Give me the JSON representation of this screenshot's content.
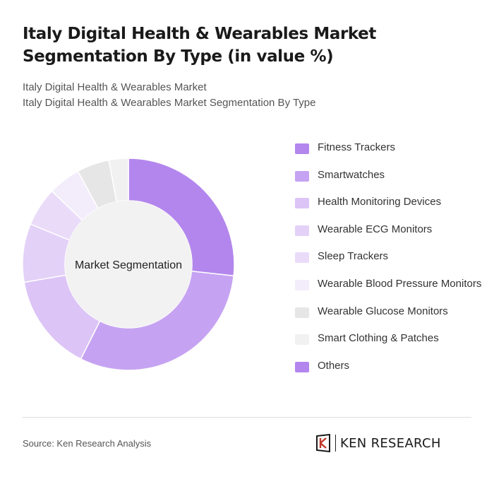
{
  "title": "Italy Digital Health & Wearables Market Segmentation By Type (in value %)",
  "subtitle_line1": "Italy Digital Health & Wearables Market",
  "subtitle_line2": "Italy Digital Health & Wearables Market Segmentation By Type",
  "source": "Source: Ken Research Analysis",
  "brand": "KEN RESEARCH",
  "chart_data": {
    "type": "pie",
    "variant": "donut",
    "center_label": "Market Segmentation",
    "legend_position": "right",
    "categories": [
      "Fitness Trackers",
      "Smartwatches",
      "Health Monitoring Devices",
      "Wearable ECG Monitors",
      "Sleep Trackers",
      "Wearable Blood Pressure Monitors",
      "Wearable Glucose Monitors",
      "Smart Clothing & Patches",
      "Others"
    ],
    "values": [
      27,
      31,
      15,
      9,
      6,
      5,
      5,
      3,
      0
    ],
    "colors": [
      "#b386ed",
      "#c6a3f2",
      "#dcc4f7",
      "#e3d1f8",
      "#eadcf9",
      "#f3edfb",
      "#e6e6e6",
      "#f1f1f1",
      "#b386ed"
    ]
  }
}
